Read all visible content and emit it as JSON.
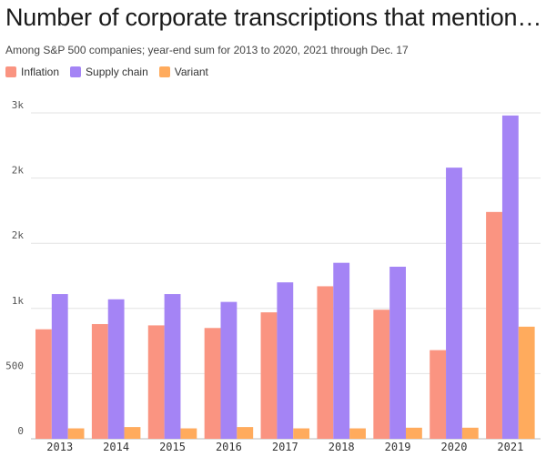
{
  "header": {
    "title": "Number of corporate transcriptions that mention…",
    "subtitle": "Among S&P 500 companies; year-end sum for 2013 to 2020, 2021 through Dec. 17"
  },
  "chart_data": {
    "type": "bar",
    "title": "Number of corporate transcriptions that mention…",
    "subtitle": "Among S&P 500 companies; year-end sum for 2013 to 2020, 2021 through Dec. 17",
    "xlabel": "",
    "ylabel": "",
    "categories": [
      "2013",
      "2014",
      "2015",
      "2016",
      "2017",
      "2018",
      "2019",
      "2020",
      "2021"
    ],
    "series": [
      {
        "name": "Inflation",
        "color": "#fa9481",
        "values": [
          840,
          880,
          870,
          850,
          970,
          1170,
          990,
          680,
          1740
        ]
      },
      {
        "name": "Supply chain",
        "color": "#a484f5",
        "values": [
          1110,
          1070,
          1110,
          1050,
          1200,
          1350,
          1320,
          2080,
          2480
        ]
      },
      {
        "name": "Variant",
        "color": "#ffab5d",
        "values": [
          80,
          90,
          80,
          90,
          80,
          80,
          85,
          85,
          860
        ]
      }
    ],
    "yticks": [
      0,
      500,
      1000,
      1500,
      2000,
      2500
    ],
    "ytick_labels": [
      "0",
      "500",
      "1k",
      "2k",
      "2k",
      "3k"
    ],
    "ylim": [
      0,
      2500
    ],
    "grid": true,
    "legend_position": "top-left"
  }
}
